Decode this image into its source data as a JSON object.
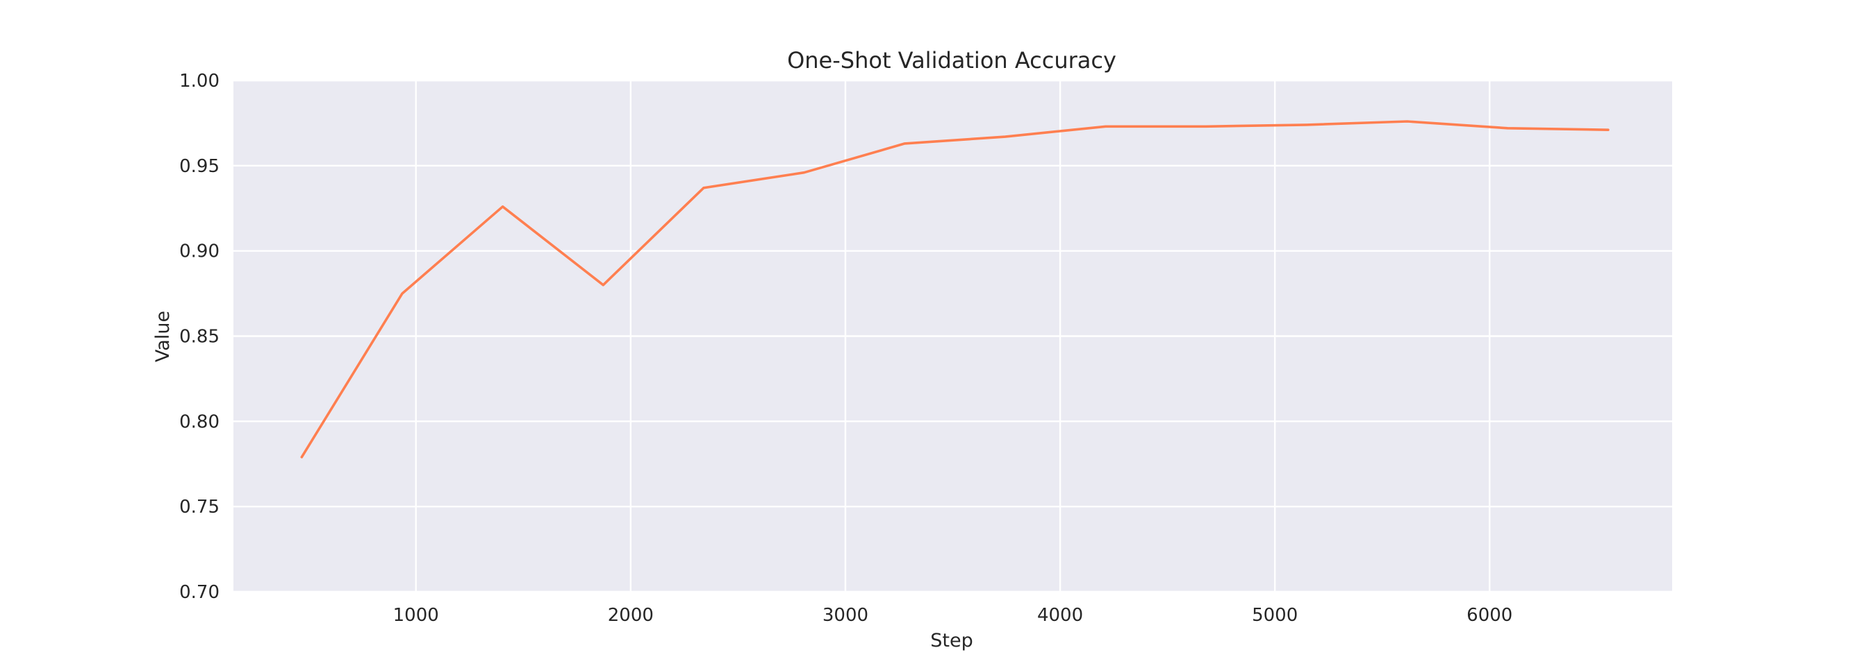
{
  "chart_data": {
    "type": "line",
    "title": "One-Shot Validation Accuracy",
    "xlabel": "Step",
    "ylabel": "Value",
    "xlim": [
      150,
      6850
    ],
    "ylim": [
      0.7,
      1.0
    ],
    "xticks": [
      1000,
      2000,
      3000,
      4000,
      5000,
      6000
    ],
    "yticks": [
      0.7,
      0.75,
      0.8,
      0.85,
      0.9,
      0.95,
      1.0
    ],
    "ytick_format": 2,
    "grid": true,
    "series": [
      {
        "color": "#ff7f50",
        "x": [
          468,
          936,
          1404,
          1872,
          2340,
          2808,
          3276,
          3744,
          4212,
          4680,
          5148,
          5616,
          6084,
          6552
        ],
        "y": [
          0.779,
          0.875,
          0.926,
          0.88,
          0.937,
          0.946,
          0.963,
          0.967,
          0.973,
          0.973,
          0.974,
          0.976,
          0.972,
          0.971
        ]
      }
    ]
  }
}
